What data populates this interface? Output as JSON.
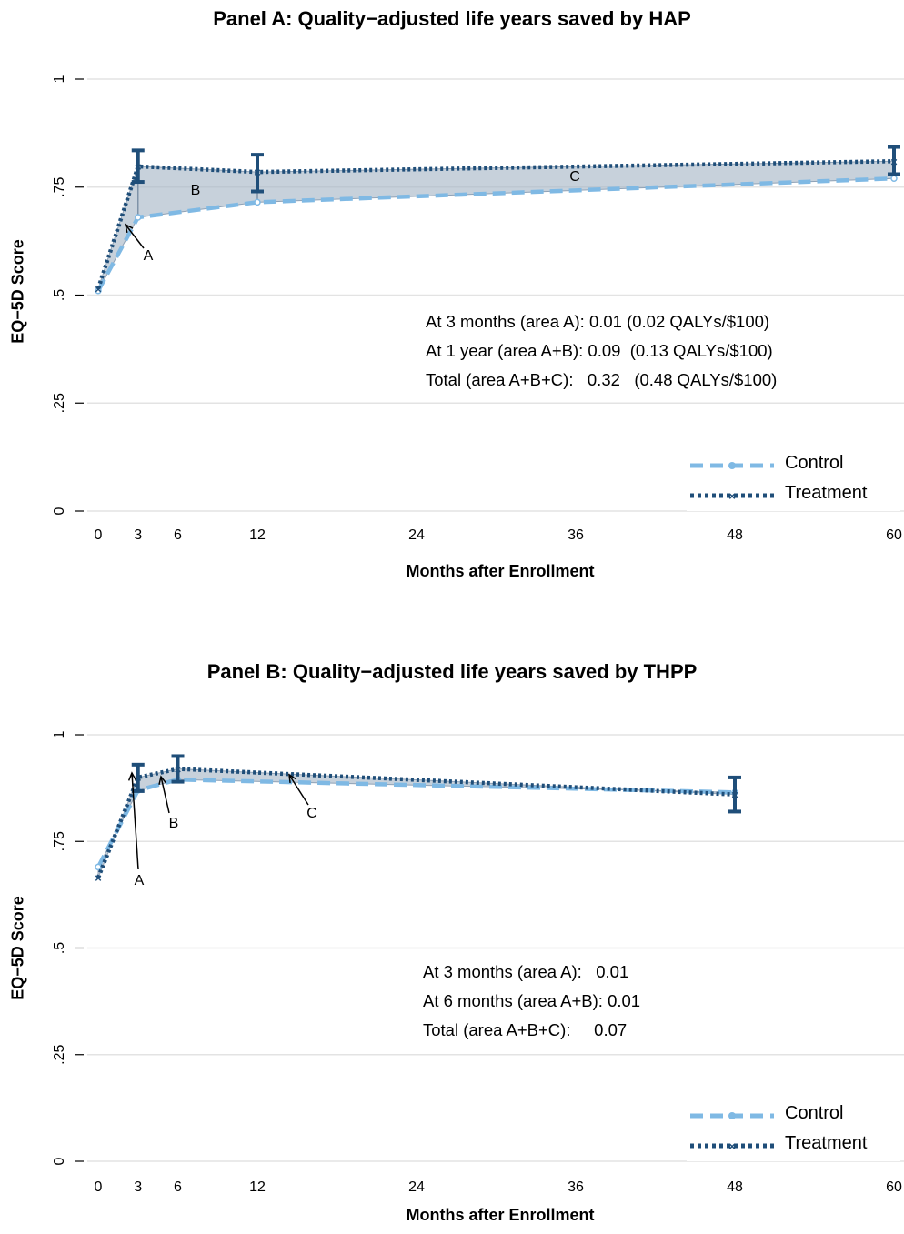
{
  "chart_data": [
    {
      "type": "line",
      "title": "Panel A: Quality−adjusted life years saved by HAP",
      "xlabel": "Months after Enrollment",
      "ylabel": "EQ−5D Score",
      "x_ticks": [
        0,
        3,
        6,
        12,
        24,
        36,
        48,
        60
      ],
      "y_ticks": [
        0,
        0.25,
        0.5,
        0.75,
        1
      ],
      "y_tick_labels": [
        "0",
        ".25",
        ".5",
        ".75",
        "1"
      ],
      "xlim": [
        0,
        60
      ],
      "ylim": [
        0,
        1
      ],
      "grid": true,
      "legend_position": "bottom-right",
      "series": [
        {
          "name": "Control",
          "x": [
            0,
            3,
            12,
            60
          ],
          "y": [
            0.51,
            0.68,
            0.715,
            0.77
          ],
          "color": "#7fb9e4",
          "style": "dashed"
        },
        {
          "name": "Treatment",
          "x": [
            0,
            3,
            12,
            60
          ],
          "y": [
            0.515,
            0.798,
            0.785,
            0.81
          ],
          "color": "#1f4e79",
          "style": "dotted",
          "error_bars": [
            null,
            [
              0.762,
              0.835
            ],
            [
              0.74,
              0.825
            ],
            [
              0.78,
              0.843
            ]
          ]
        }
      ],
      "area_labels": [
        "A",
        "B",
        "C"
      ],
      "annotations": [
        "At 3 months (area A): 0.01 (0.02 QALYs/$100)",
        "At 1 year (area A+B): 0.09  (0.13 QALYs/$100)",
        "Total (area A+B+C):   0.32   (0.48 QALYs/$100)"
      ]
    },
    {
      "type": "line",
      "title": "Panel B: Quality−adjusted life years saved by THPP",
      "xlabel": "Months after Enrollment",
      "ylabel": "EQ−5D Score",
      "x_ticks": [
        0,
        3,
        6,
        12,
        24,
        36,
        48,
        60
      ],
      "y_ticks": [
        0,
        0.25,
        0.5,
        0.75,
        1
      ],
      "y_tick_labels": [
        "0",
        ".25",
        ".5",
        ".75",
        "1"
      ],
      "xlim": [
        0,
        60
      ],
      "ylim": [
        0,
        1
      ],
      "grid": true,
      "legend_position": "bottom-right",
      "series": [
        {
          "name": "Control",
          "x": [
            0,
            3,
            6,
            48
          ],
          "y": [
            0.69,
            0.87,
            0.895,
            0.865
          ],
          "color": "#7fb9e4",
          "style": "dashed"
        },
        {
          "name": "Treatment",
          "x": [
            0,
            3,
            6,
            48
          ],
          "y": [
            0.665,
            0.9,
            0.92,
            0.86
          ],
          "color": "#1f4e79",
          "style": "dotted",
          "error_bars": [
            null,
            [
              0.868,
              0.93
            ],
            [
              0.89,
              0.95
            ],
            [
              0.82,
              0.9
            ]
          ]
        }
      ],
      "area_labels": [
        "A",
        "B",
        "C"
      ],
      "annotations": [
        "At 3 months (area A):   0.01",
        "At 6 months (area A+B): 0.01",
        "Total (area A+B+C):     0.07"
      ]
    }
  ],
  "legend": {
    "control": "Control",
    "treatment": "Treatment"
  }
}
